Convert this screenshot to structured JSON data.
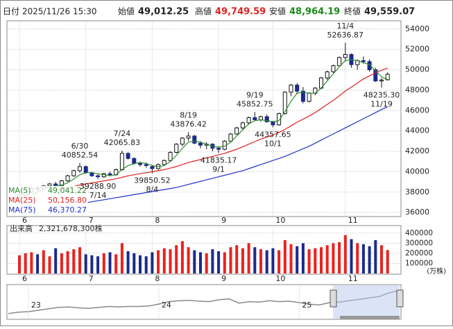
{
  "header": {
    "date_label": "日付",
    "date": "2025/11/26 15:30",
    "open_label": "始値",
    "open": "49,012.25",
    "high_label": "高値",
    "high": "49,749.59",
    "low_label": "安値",
    "low": "48,964.19",
    "close_label": "終値",
    "close": "49,559.07"
  },
  "chart_data": {
    "type": "candlestick",
    "ylim": [
      35600,
      54800
    ],
    "yticks": [
      36000,
      38000,
      40000,
      42000,
      44000,
      46000,
      48000,
      50000,
      52000,
      54000
    ],
    "xticks": [
      {
        "value": 0,
        "label": "6"
      },
      {
        "value": 11,
        "label": "7"
      },
      {
        "value": 22,
        "label": "8"
      },
      {
        "value": 33,
        "label": "9"
      },
      {
        "value": 42,
        "label": "10"
      },
      {
        "value": 54,
        "label": "11"
      }
    ],
    "up_color": "#ffffff",
    "down_color": "#1a2a8c",
    "grid": true,
    "ohlc": [
      [
        37470,
        37800,
        37300,
        37700
      ],
      [
        37700,
        38100,
        37600,
        38000
      ],
      [
        38000,
        38500,
        37900,
        38400
      ],
      [
        38400,
        38600,
        38100,
        38300
      ],
      [
        38300,
        38700,
        38200,
        38600
      ],
      [
        38600,
        38900,
        38400,
        38800
      ],
      [
        38800,
        39000,
        38500,
        38600
      ],
      [
        38600,
        39200,
        38500,
        39100
      ],
      [
        39100,
        39700,
        39000,
        39600
      ],
      [
        39600,
        40200,
        39500,
        40100
      ],
      [
        40100,
        40852.54,
        39900,
        40500
      ],
      [
        40500,
        40600,
        39800,
        39900
      ],
      [
        39900,
        40000,
        39500,
        39600
      ],
      [
        39600,
        39800,
        39288.9,
        39500
      ],
      [
        39500,
        39900,
        39400,
        39800
      ],
      [
        39800,
        40000,
        39600,
        39700
      ],
      [
        39700,
        40300,
        39600,
        40200
      ],
      [
        40200,
        42065.83,
        40100,
        41800
      ],
      [
        41800,
        41900,
        41200,
        41300
      ],
      [
        41300,
        41400,
        40700,
        40800
      ],
      [
        40800,
        41000,
        40500,
        40700
      ],
      [
        40700,
        40900,
        40400,
        40600
      ],
      [
        40500,
        40600,
        39850.52,
        40300
      ],
      [
        40300,
        40800,
        40200,
        40700
      ],
      [
        40700,
        41200,
        40600,
        41100
      ],
      [
        41100,
        42000,
        41000,
        41900
      ],
      [
        41900,
        42800,
        41800,
        42700
      ],
      [
        42700,
        43400,
        42500,
        43300
      ],
      [
        43300,
        43876.42,
        43000,
        43500
      ],
      [
        43500,
        43600,
        42700,
        42800
      ],
      [
        42800,
        43000,
        42300,
        42600
      ],
      [
        42600,
        42900,
        42200,
        42700
      ],
      [
        42700,
        42800,
        42000,
        42300
      ],
      [
        42300,
        42500,
        41835.17,
        42200
      ],
      [
        42200,
        43100,
        42100,
        43000
      ],
      [
        43000,
        43800,
        42900,
        43700
      ],
      [
        43700,
        44400,
        43600,
        44300
      ],
      [
        44300,
        44900,
        44100,
        44800
      ],
      [
        44800,
        45400,
        44600,
        45300
      ],
      [
        45300,
        45852.75,
        45000,
        45100
      ],
      [
        45100,
        45500,
        44900,
        45400
      ],
      [
        45400,
        45600,
        44800,
        44900
      ],
      [
        44900,
        45000,
        44357.65,
        44600
      ],
      [
        44600,
        45800,
        44500,
        45700
      ],
      [
        45700,
        47900,
        45600,
        47800
      ],
      [
        47800,
        48600,
        47400,
        48500
      ],
      [
        48500,
        48700,
        47600,
        47900
      ],
      [
        47900,
        48300,
        46700,
        46900
      ],
      [
        46900,
        47800,
        46800,
        47700
      ],
      [
        47700,
        48300,
        47500,
        48200
      ],
      [
        48200,
        49300,
        48100,
        49200
      ],
      [
        49200,
        49900,
        49000,
        49800
      ],
      [
        49800,
        50500,
        49700,
        50400
      ],
      [
        50400,
        51300,
        50300,
        51200
      ],
      [
        51200,
        52636.87,
        50800,
        51500
      ],
      [
        51500,
        51600,
        50200,
        50500
      ],
      [
        50500,
        51000,
        50000,
        50900
      ],
      [
        50900,
        51300,
        50600,
        50800
      ],
      [
        50800,
        51000,
        49800,
        50000
      ],
      [
        50000,
        50200,
        48800,
        48900
      ],
      [
        48900,
        49200,
        48235.3,
        49000
      ],
      [
        49012.25,
        49749.59,
        48964.19,
        49559.07
      ]
    ],
    "annotations": [
      {
        "date": "6/30",
        "value": 40852.54,
        "label": "40852.54"
      },
      {
        "date": "7/14",
        "value": 39288.9,
        "label": "39288.90"
      },
      {
        "date": "7/24",
        "value": 42065.83,
        "label": "42065.83"
      },
      {
        "date": "8/4",
        "value": 39850.52,
        "label": "39850.52"
      },
      {
        "date": "8/19",
        "value": 43876.42,
        "label": "43876.42"
      },
      {
        "date": "9/1",
        "value": 41835.17,
        "label": "41835.17"
      },
      {
        "date": "9/19",
        "value": 45852.75,
        "label": "45852.75"
      },
      {
        "date": "10/1",
        "value": 44357.65,
        "label": "44357.65"
      },
      {
        "date": "11/4",
        "value": 52636.87,
        "label": "52636.87"
      },
      {
        "date": "11/19",
        "value": 48235.3,
        "label": "48235.30"
      }
    ],
    "series": [
      {
        "name": "MA(5)",
        "color": "#2e8b2e",
        "last_label": "49,041.22",
        "values": [
          null,
          null,
          37700,
          38000,
          38300,
          38500,
          38600,
          38700,
          38900,
          39300,
          39700,
          39900,
          39900,
          39800,
          39700,
          39600,
          39700,
          40200,
          40600,
          40800,
          40900,
          40800,
          40600,
          40500,
          40600,
          41000,
          41600,
          42300,
          42900,
          43000,
          42900,
          42700,
          42500,
          42400,
          42500,
          42900,
          43500,
          44100,
          44700,
          45000,
          45100,
          45000,
          44900,
          45000,
          45900,
          46900,
          47700,
          47800,
          47700,
          47700,
          48200,
          48900,
          49600,
          50300,
          50900,
          51000,
          50900,
          50700,
          50500,
          49900,
          49300,
          49041.22
        ]
      },
      {
        "name": "MA(25)",
        "color": "#e02020",
        "last_label": "50,156.80",
        "values": [
          null,
          null,
          null,
          null,
          null,
          null,
          38200,
          38300,
          38400,
          38550,
          38700,
          38800,
          38900,
          39000,
          39100,
          39200,
          39300,
          39450,
          39600,
          39700,
          39800,
          39900,
          40000,
          40100,
          40200,
          40350,
          40500,
          40700,
          40900,
          41050,
          41200,
          41350,
          41500,
          41650,
          41800,
          42000,
          42200,
          42450,
          42700,
          42950,
          43200,
          43400,
          43600,
          43850,
          44150,
          44500,
          44850,
          45150,
          45450,
          45800,
          46200,
          46600,
          47000,
          47450,
          47900,
          48300,
          48700,
          49100,
          49400,
          49700,
          49950,
          50156.8
        ]
      },
      {
        "name": "MA(75)",
        "color": "#1f2fd0",
        "last_label": "46,370.27",
        "values": [
          null,
          null,
          null,
          null,
          null,
          null,
          null,
          null,
          null,
          null,
          null,
          36950,
          37050,
          37150,
          37250,
          37350,
          37450,
          37550,
          37650,
          37750,
          37850,
          37950,
          38050,
          38150,
          38250,
          38350,
          38450,
          38600,
          38750,
          38900,
          39050,
          39200,
          39350,
          39500,
          39650,
          39800,
          39950,
          40100,
          40300,
          40500,
          40700,
          40900,
          41100,
          41300,
          41500,
          41750,
          42000,
          42250,
          42500,
          42800,
          43100,
          43400,
          43700,
          44000,
          44300,
          44600,
          44900,
          45200,
          45500,
          45800,
          46100,
          46370.27
        ]
      }
    ]
  },
  "volume": {
    "label": "出来高",
    "total": "2,321,678,300株",
    "unit": "(万株)",
    "ylim": [
      0,
      440000
    ],
    "yticks": [
      100000,
      200000,
      300000,
      400000
    ],
    "up_color": "#e8231f",
    "down_color": "#1a2a8c",
    "values": [
      180000,
      200000,
      210000,
      190000,
      230000,
      170000,
      250000,
      200000,
      220000,
      240000,
      260000,
      190000,
      180000,
      170000,
      200000,
      210000,
      190000,
      300000,
      220000,
      200000,
      180000,
      170000,
      210000,
      230000,
      250000,
      240000,
      280000,
      320000,
      260000,
      230000,
      210000,
      200000,
      240000,
      220000,
      210000,
      260000,
      280000,
      250000,
      300000,
      260000,
      240000,
      230000,
      250000,
      230000,
      330000,
      290000,
      270000,
      300000,
      240000,
      250000,
      260000,
      280000,
      300000,
      310000,
      380000,
      340000,
      300000,
      290000,
      270000,
      330000,
      280000,
      232168
    ]
  },
  "navigator": {
    "ylim": [
      20000,
      55000
    ],
    "color": "#8a8a8a",
    "xticks": [
      {
        "value": 2,
        "label": "23"
      },
      {
        "value": 15,
        "label": "24"
      },
      {
        "value": 29,
        "label": "25"
      }
    ],
    "values": [
      26000,
      27500,
      28000,
      29500,
      31000,
      32500,
      33000,
      32000,
      31500,
      32500,
      33500,
      33000,
      33500,
      33500,
      34000,
      36000,
      38500,
      39500,
      40000,
      39000,
      38500,
      40500,
      41500,
      37000,
      38500,
      38000,
      39500,
      38500,
      39000,
      37500,
      36000,
      35000,
      37500,
      38000,
      39500,
      41000,
      42500,
      44000,
      48000,
      50000
    ]
  }
}
